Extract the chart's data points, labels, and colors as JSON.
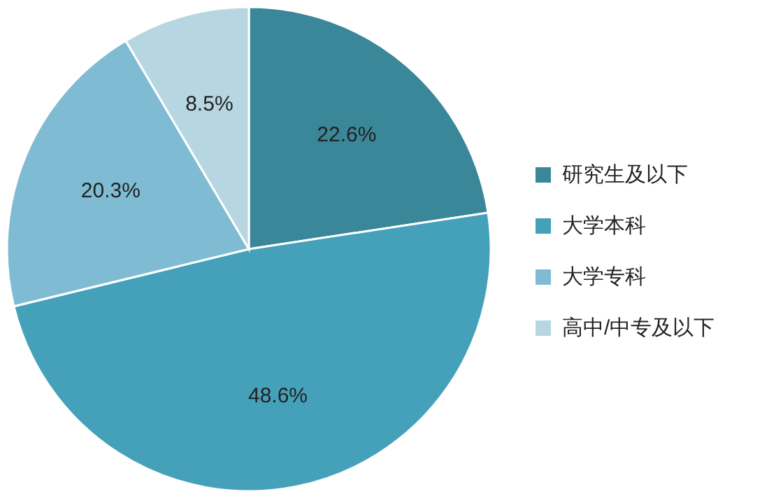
{
  "chart_data": {
    "type": "pie",
    "categories": [
      "研究生及以下",
      "大学本科",
      "大学专科",
      "高中/中专及以下"
    ],
    "values": [
      22.6,
      48.6,
      20.3,
      8.5
    ],
    "colors": [
      "#3a8799",
      "#45a1ba",
      "#7fbcd3",
      "#b6d7e2"
    ],
    "value_labels": [
      "22.6%",
      "48.6%",
      "20.3%",
      "8.5%"
    ],
    "legend": "right"
  }
}
